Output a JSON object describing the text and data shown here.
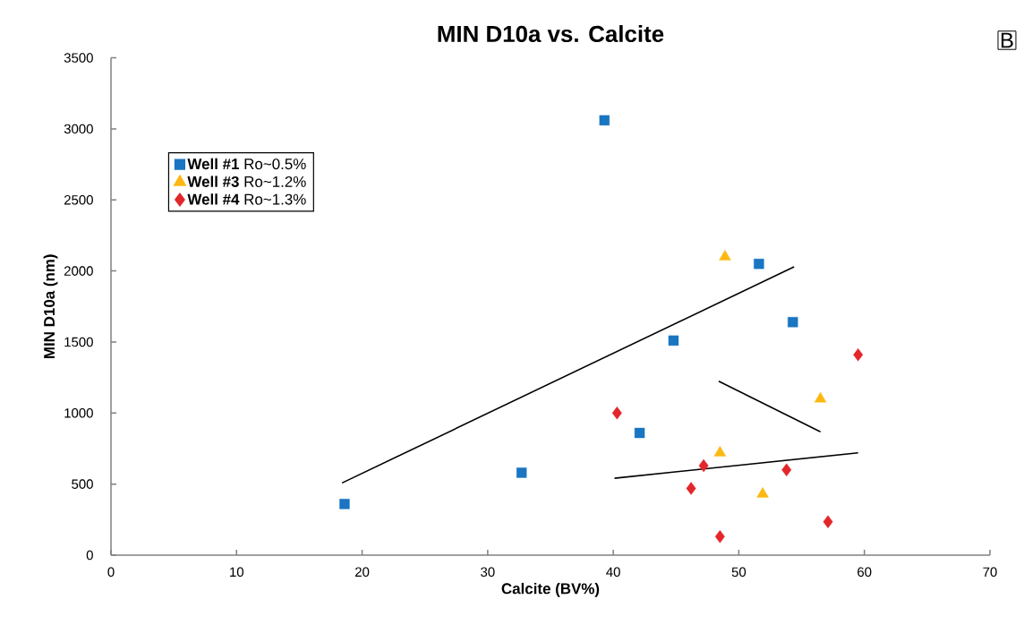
{
  "chart_data": {
    "type": "scatter",
    "title": "MIN D10a vs. Calcite",
    "xlabel": "Calcite (BV%)",
    "ylabel": "MIN D10a (nm)",
    "annotations": [
      "B"
    ],
    "xlim": [
      0,
      70
    ],
    "xticks": [
      0,
      10,
      20,
      30,
      40,
      50,
      60,
      70
    ],
    "ylim": [
      0,
      3500
    ],
    "yticks": [
      0,
      500,
      1000,
      1500,
      2000,
      2500,
      3000,
      3500
    ],
    "grid": false,
    "legend": "top left",
    "series": [
      {
        "name": "**Well #1** Ro~0.5%",
        "color": "#1a75c2",
        "marker": "square",
        "x": [
          18.6,
          32.7,
          39.3,
          51.6,
          54.3,
          44.8,
          42.1
        ],
        "values": [
          360,
          580,
          3060,
          2050,
          1640,
          1510,
          860
        ]
      },
      {
        "name": "**Well #3** Ro~1.2%",
        "color": "#fdb913",
        "marker": "triangle",
        "x": [
          48.9,
          56.5,
          48.5,
          51.9
        ],
        "values": [
          2100,
          1100,
          720,
          430
        ]
      },
      {
        "name": "**Well #4** Ro~1.3%",
        "color": "#e3262a",
        "marker": "diamond",
        "x": [
          59.5,
          40.3,
          47.2,
          53.8,
          46.2,
          57.1,
          48.5
        ],
        "values": [
          1410,
          1000,
          630,
          600,
          470,
          235,
          130
        ]
      },
      {
        "type": "line",
        "color": "#000000",
        "marker": "none",
        "x": [
          18.4,
          54.4
        ],
        "values": [
          508,
          2029
        ]
      },
      {
        "type": "line",
        "color": "#000000",
        "marker": "none",
        "x": [
          48.4,
          56.5
        ],
        "values": [
          1224,
          868
        ]
      },
      {
        "type": "line",
        "color": "#000000",
        "marker": "none",
        "x": [
          40.1,
          59.5
        ],
        "values": [
          541,
          720
        ]
      }
    ]
  }
}
